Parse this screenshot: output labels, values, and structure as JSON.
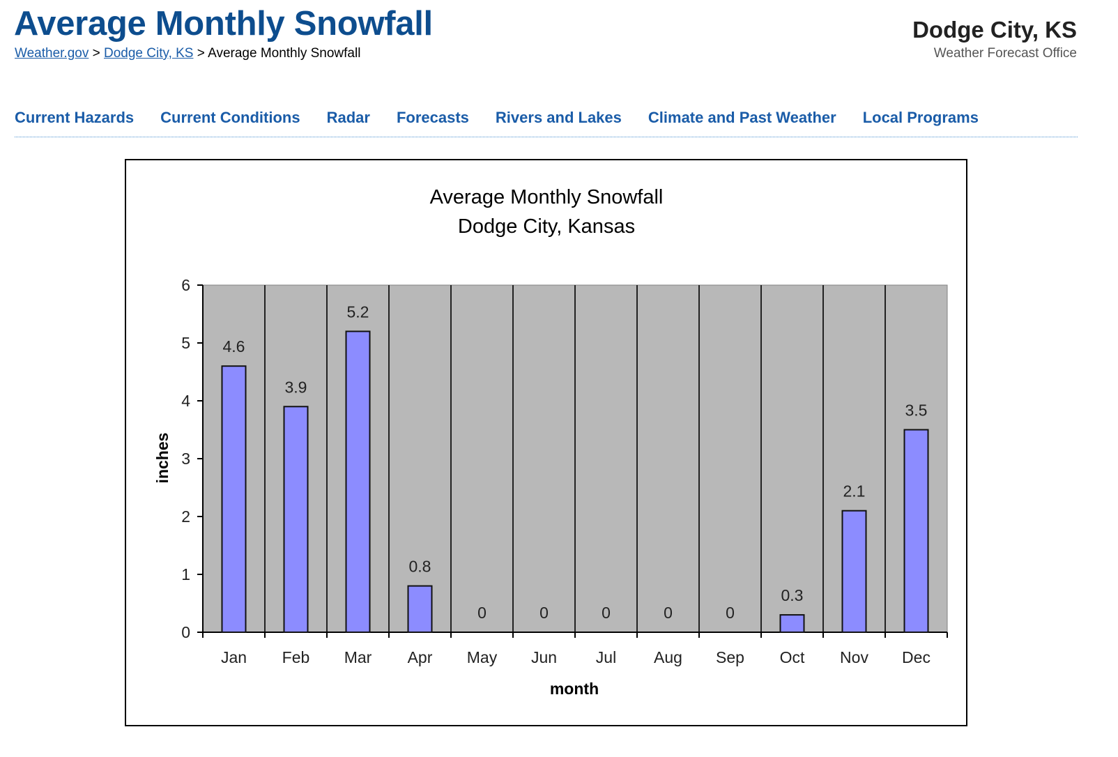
{
  "header": {
    "title": "Average Monthly Snowfall",
    "breadcrumb": [
      {
        "label": "Weather.gov",
        "link": true
      },
      {
        "label": "Dodge City, KS",
        "link": true
      },
      {
        "label": "Average Monthly Snowfall",
        "link": false
      }
    ],
    "separator": ">",
    "office_name": "Dodge City, KS",
    "office_sub": "Weather Forecast Office"
  },
  "nav": [
    "Current Hazards",
    "Current Conditions",
    "Radar",
    "Forecasts",
    "Rivers and Lakes",
    "Climate and Past Weather",
    "Local Programs"
  ],
  "chart_data": {
    "type": "bar",
    "title": "Average Monthly Snowfall",
    "subtitle": "Dodge City, Kansas",
    "xlabel": "month",
    "ylabel": "inches",
    "categories": [
      "Jan",
      "Feb",
      "Mar",
      "Apr",
      "May",
      "Jun",
      "Jul",
      "Aug",
      "Sep",
      "Oct",
      "Nov",
      "Dec"
    ],
    "values": [
      4.6,
      3.9,
      5.2,
      0.8,
      0,
      0,
      0,
      0,
      0,
      0.3,
      2.1,
      3.5
    ],
    "ylim": [
      0,
      6
    ],
    "yticks": [
      0,
      1,
      2,
      3,
      4,
      5,
      6
    ],
    "data_labels": true,
    "grid": "vertical category separators",
    "legend": "none",
    "colors": {
      "bar": "#8c8cff",
      "plot_bg": "#b8b8b8",
      "title_blue": "#0d4d8e"
    }
  }
}
